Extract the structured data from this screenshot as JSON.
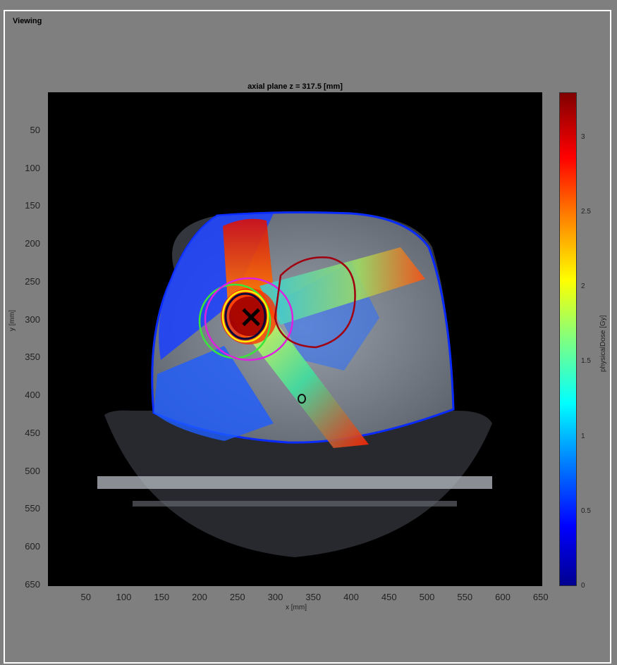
{
  "panel": {
    "title": "Viewing"
  },
  "plot": {
    "title": "axial plane z = 317.5 [mm]",
    "xlabel": "x [mm]",
    "ylabel": "y [mm]",
    "xticks": [
      "50",
      "100",
      "150",
      "200",
      "250",
      "300",
      "350",
      "400",
      "450",
      "500",
      "550",
      "600",
      "650"
    ],
    "yticks": [
      "50",
      "100",
      "150",
      "200",
      "250",
      "300",
      "350",
      "400",
      "450",
      "500",
      "550",
      "600",
      "650"
    ]
  },
  "colorbar": {
    "label": "physicalDose [Gy]",
    "ticks": [
      "0",
      "0.5",
      "1",
      "1.5",
      "2",
      "2.5",
      "3"
    ],
    "max": 3.3
  },
  "isocenter": {
    "x_mm": 268,
    "y_mm": 297
  }
}
